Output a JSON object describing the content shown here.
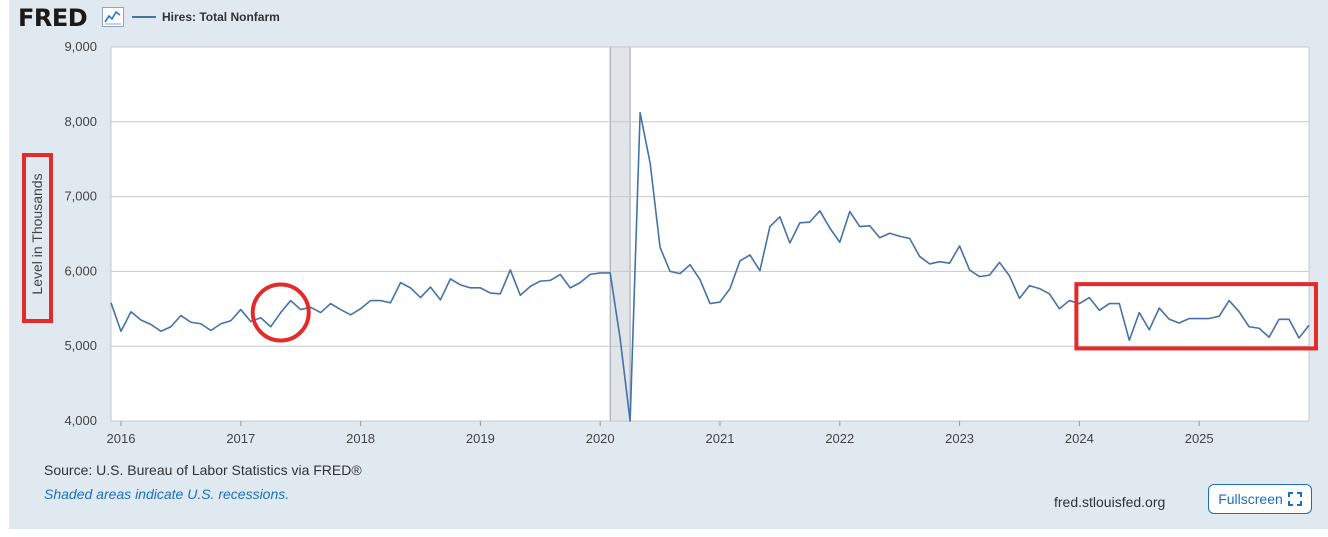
{
  "header": {
    "logo_text": "FRED",
    "logo_icon": "line-chart-icon"
  },
  "legend": {
    "series_name": "Hires: Total Nonfarm",
    "color": "#4572a7"
  },
  "footer": {
    "source": "Source: U.S. Bureau of Labor Statistics via FRED®",
    "note": "Shaded areas indicate U.S. recessions.",
    "site": "fred.stlouisfed.org",
    "fullscreen_label": "Fullscreen",
    "fullscreen_icon": "expand-icon"
  },
  "chart_data": {
    "type": "line",
    "ylabel": "Level in Thousands",
    "ylim": [
      4000,
      9000
    ],
    "yticks": [
      4000,
      5000,
      6000,
      7000,
      8000,
      9000
    ],
    "yticks_labels": [
      "4,000",
      "5,000",
      "6,000",
      "7,000",
      "8,000",
      "9,000"
    ],
    "xlim": [
      "2015-12",
      "2025-12"
    ],
    "xticks": [
      "2016",
      "2017",
      "2018",
      "2019",
      "2020",
      "2021",
      "2022",
      "2023",
      "2024",
      "2025"
    ],
    "grid": true,
    "recession": {
      "start": "2020-02",
      "end": "2020-04",
      "color": "#e1e4e8"
    },
    "series": [
      {
        "name": "Hires: Total Nonfarm",
        "color": "#4572a7",
        "start": "2015-12",
        "frequency": "monthly",
        "values": [
          5580,
          5200,
          5460,
          5350,
          5290,
          5200,
          5260,
          5410,
          5320,
          5300,
          5210,
          5300,
          5340,
          5490,
          5330,
          5380,
          5260,
          5450,
          5610,
          5490,
          5520,
          5450,
          5570,
          5490,
          5420,
          5500,
          5610,
          5610,
          5580,
          5850,
          5780,
          5650,
          5790,
          5620,
          5900,
          5820,
          5780,
          5780,
          5710,
          5700,
          6020,
          5680,
          5800,
          5870,
          5880,
          5960,
          5780,
          5850,
          5960,
          5980,
          5980,
          5100,
          4000,
          8120,
          7450,
          6320,
          6000,
          5970,
          6090,
          5890,
          5570,
          5590,
          5770,
          6140,
          6220,
          6010,
          6600,
          6730,
          6380,
          6650,
          6660,
          6810,
          6580,
          6390,
          6800,
          6600,
          6610,
          6450,
          6510,
          6470,
          6440,
          6200,
          6100,
          6130,
          6110,
          6340,
          6020,
          5930,
          5950,
          6120,
          5940,
          5640,
          5810,
          5770,
          5700,
          5500,
          5610,
          5570,
          5650,
          5480,
          5570,
          5570,
          5080,
          5450,
          5220,
          5510,
          5360,
          5310,
          5370,
          5370,
          5370,
          5400,
          5610,
          5460,
          5260,
          5240,
          5120,
          5360,
          5360,
          5110,
          5280
        ]
      }
    ],
    "annotations": [
      {
        "shape": "circle",
        "x": "2017-05",
        "y": 5450,
        "color": "#e32b2b"
      },
      {
        "shape": "rectangle",
        "x_from": "2024-01",
        "x_to": "2025-12",
        "y_from": 4970,
        "y_to": 5830,
        "color": "#e32b2b"
      },
      {
        "shape": "rectangle",
        "target": "ylabel",
        "color": "#e32b2b"
      }
    ]
  }
}
